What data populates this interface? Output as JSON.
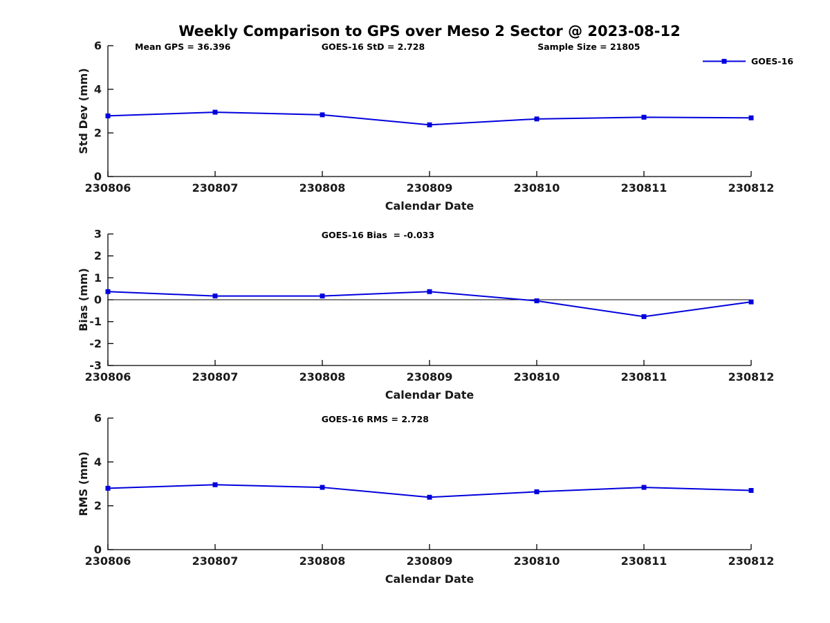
{
  "title": "Weekly Comparison to GPS over Meso 2 Sector @ 2023-08-12",
  "legend": {
    "label": "GOES-16",
    "position": "top-right"
  },
  "colors": {
    "line": "#0000dd",
    "axis": "#000000",
    "text": "#1a1a1a",
    "annotation": "#000000",
    "background": "#ffffff"
  },
  "chart_data": [
    {
      "type": "line",
      "name": "std-dev",
      "ylabel": "Std Dev (mm)",
      "xlabel": "Calendar Date",
      "ylim": [
        0,
        6
      ],
      "yticks": [
        0,
        2,
        4,
        6
      ],
      "grid": false,
      "zero_line": false,
      "legend_entries": [
        "GOES-16"
      ],
      "categories": [
        "230806",
        "230807",
        "230808",
        "230809",
        "230810",
        "230811",
        "230812"
      ],
      "series": [
        {
          "name": "GOES-16",
          "values": [
            2.78,
            2.95,
            2.83,
            2.37,
            2.64,
            2.72,
            2.69
          ]
        }
      ],
      "annotations": [
        "Mean GPS = 36.396",
        "GOES-16 StD = 2.728",
        "Sample Size = 21805"
      ]
    },
    {
      "type": "line",
      "name": "bias",
      "ylabel": "Bias (mm)",
      "xlabel": "Calendar Date",
      "ylim": [
        -3,
        3
      ],
      "yticks": [
        -3,
        -2,
        -1,
        0,
        1,
        2,
        3
      ],
      "grid": false,
      "zero_line": true,
      "legend_entries": [],
      "categories": [
        "230806",
        "230807",
        "230808",
        "230809",
        "230810",
        "230811",
        "230812"
      ],
      "series": [
        {
          "name": "GOES-16",
          "values": [
            0.37,
            0.17,
            0.17,
            0.37,
            -0.05,
            -0.77,
            -0.1
          ]
        }
      ],
      "annotations": [
        "GOES-16 Bias  = -0.033"
      ]
    },
    {
      "type": "line",
      "name": "rms",
      "ylabel": "RMS (mm)",
      "xlabel": "Calendar Date",
      "ylim": [
        0,
        6
      ],
      "yticks": [
        0,
        2,
        4,
        6
      ],
      "grid": false,
      "zero_line": false,
      "legend_entries": [],
      "categories": [
        "230806",
        "230807",
        "230808",
        "230809",
        "230810",
        "230811",
        "230812"
      ],
      "series": [
        {
          "name": "GOES-16",
          "values": [
            2.8,
            2.96,
            2.84,
            2.39,
            2.64,
            2.84,
            2.7
          ]
        }
      ],
      "annotations": [
        "GOES-16 RMS = 2.728"
      ]
    }
  ]
}
